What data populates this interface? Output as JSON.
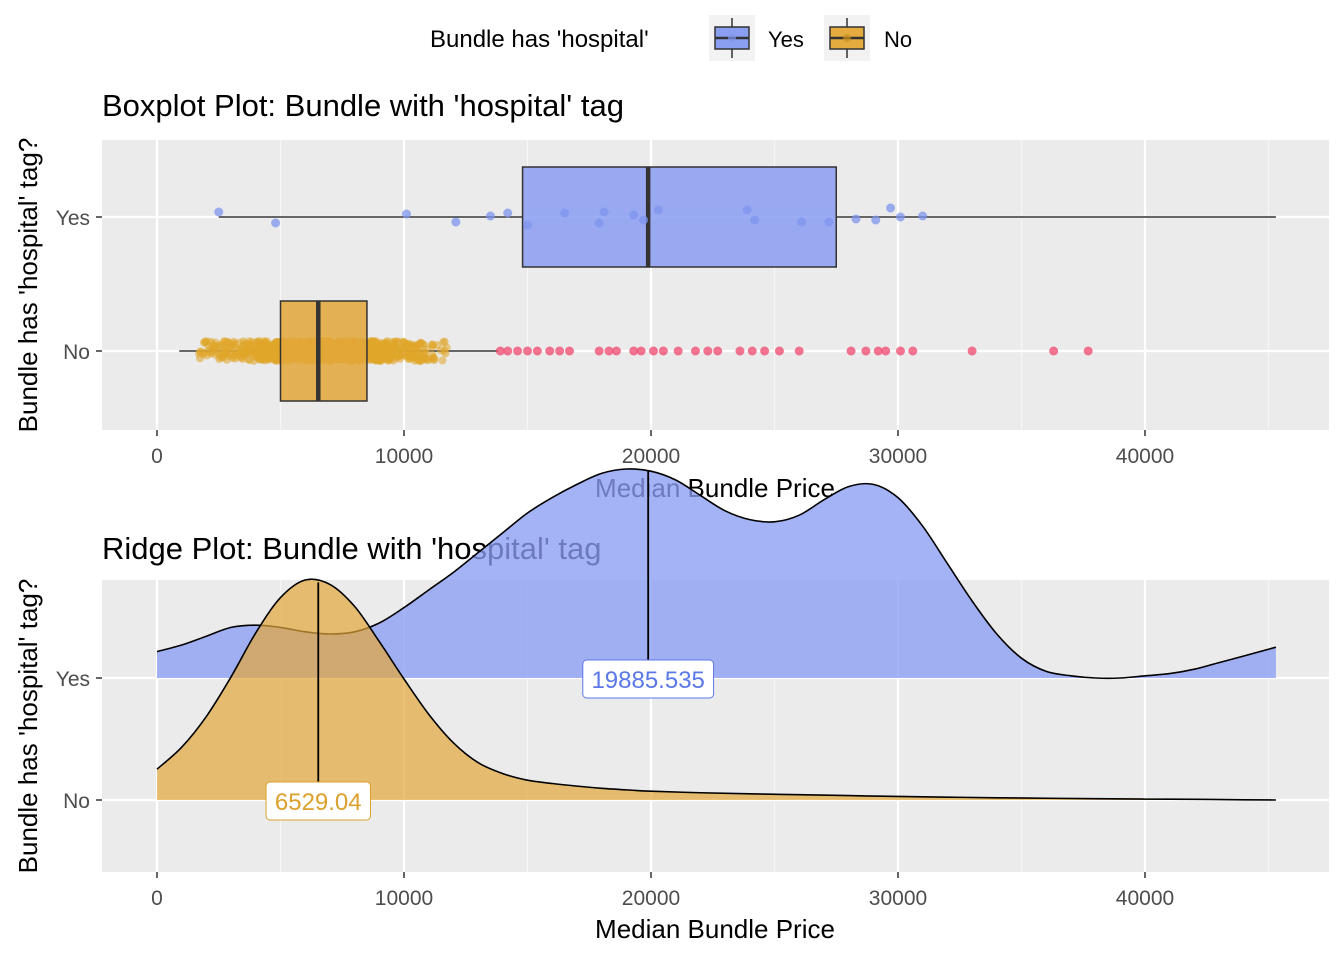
{
  "legend": {
    "title": "Bundle has 'hospital'",
    "items": [
      {
        "label": "Yes",
        "fill": "#8a9ef2"
      },
      {
        "label": "No",
        "fill": "#e4ab3e"
      }
    ]
  },
  "colors": {
    "panel_bg": "#ebebeb",
    "grid": "#ffffff",
    "yes_fill": "#8a9ef2",
    "yes_point": "#7f95ee",
    "no_fill": "#e2a73a",
    "no_point": "#e0a52a",
    "outlier": "#f0476e",
    "line": "#333333",
    "axis_text": "#4d4d4d",
    "label_yes": "#5a78e8",
    "label_no": "#dca12c"
  },
  "chart_data": [
    {
      "type": "boxplot",
      "title": "Boxplot Plot: Bundle with 'hospital' tag",
      "xlabel": "Median Bundle Price",
      "ylabel": "Bundle has 'hospital' tag?",
      "xlim": [
        -2200,
        47600
      ],
      "x_ticks": [
        0,
        10000,
        20000,
        30000,
        40000
      ],
      "x_tick_labels": [
        "0",
        "10000",
        "20000",
        "30000",
        "40000"
      ],
      "categories": [
        "No",
        "Yes"
      ],
      "boxes": [
        {
          "name": "Yes",
          "min": 2500,
          "q1": 14800,
          "median": 19885.535,
          "q3": 27500,
          "max": 45300
        },
        {
          "name": "No",
          "min": 900,
          "q1": 5000,
          "median": 6529.04,
          "q3": 8500,
          "max": 13800
        }
      ],
      "points_yes": [
        {
          "x": 2500,
          "y": 0.05
        },
        {
          "x": 4800,
          "y": -0.06
        },
        {
          "x": 10100,
          "y": 0.03
        },
        {
          "x": 12100,
          "y": -0.05
        },
        {
          "x": 13500,
          "y": 0.01
        },
        {
          "x": 14200,
          "y": 0.04
        },
        {
          "x": 15000,
          "y": -0.08
        },
        {
          "x": 16500,
          "y": 0.04
        },
        {
          "x": 17900,
          "y": -0.06
        },
        {
          "x": 18100,
          "y": 0.05
        },
        {
          "x": 19300,
          "y": 0.02
        },
        {
          "x": 19700,
          "y": -0.03
        },
        {
          "x": 20300,
          "y": 0.07
        },
        {
          "x": 23900,
          "y": 0.07
        },
        {
          "x": 24200,
          "y": -0.03
        },
        {
          "x": 26100,
          "y": -0.05
        },
        {
          "x": 27200,
          "y": -0.05
        },
        {
          "x": 28300,
          "y": -0.02
        },
        {
          "x": 29100,
          "y": -0.03
        },
        {
          "x": 29700,
          "y": 0.09
        },
        {
          "x": 30100,
          "y": 0.0
        },
        {
          "x": 31000,
          "y": 0.01
        }
      ],
      "outliers_no": [
        13900,
        14200,
        14600,
        15000,
        15400,
        15900,
        16300,
        16700,
        17900,
        18300,
        18600,
        19300,
        19600,
        20100,
        20500,
        21100,
        21800,
        22300,
        22700,
        23600,
        24100,
        24600,
        25200,
        26000,
        28100,
        28700,
        29200,
        29500,
        30100,
        30600,
        33000,
        36300,
        37700
      ]
    },
    {
      "type": "ridgeline",
      "title": "Ridge Plot: Bundle with 'hospital' tag",
      "xlabel": "Median Bundle Price",
      "ylabel": "Bundle has 'hospital' tag?",
      "xlim": [
        -2200,
        47600
      ],
      "x_ticks": [
        0,
        10000,
        20000,
        30000,
        40000
      ],
      "x_tick_labels": [
        "0",
        "10000",
        "20000",
        "30000",
        "40000"
      ],
      "categories": [
        "No",
        "Yes"
      ],
      "series": [
        {
          "name": "Yes",
          "median": 19885.535,
          "median_label": "19885.535",
          "x": [
            0,
            1000,
            2000,
            3000,
            4000,
            5000,
            6000,
            7000,
            8000,
            9000,
            10000,
            11000,
            12000,
            13000,
            14000,
            15000,
            16000,
            17000,
            18000,
            19000,
            20000,
            21000,
            22000,
            23000,
            24000,
            25000,
            26000,
            27000,
            28000,
            29000,
            30000,
            31000,
            32000,
            33000,
            34000,
            35000,
            36000,
            37000,
            38000,
            39000,
            40000,
            41000,
            42000,
            43000,
            44000,
            45300
          ],
          "density": [
            0.12,
            0.15,
            0.19,
            0.23,
            0.24,
            0.23,
            0.21,
            0.2,
            0.21,
            0.25,
            0.32,
            0.4,
            0.48,
            0.57,
            0.66,
            0.75,
            0.82,
            0.88,
            0.93,
            0.95,
            0.94,
            0.9,
            0.83,
            0.76,
            0.72,
            0.71,
            0.74,
            0.81,
            0.87,
            0.88,
            0.82,
            0.69,
            0.52,
            0.35,
            0.2,
            0.09,
            0.03,
            0.01,
            0.0,
            0.0,
            0.01,
            0.02,
            0.04,
            0.07,
            0.1,
            0.14
          ]
        },
        {
          "name": "No",
          "median": 6529.04,
          "median_label": "6529.04",
          "x": [
            0,
            1000,
            2000,
            3000,
            4000,
            5000,
            6000,
            7000,
            8000,
            9000,
            10000,
            11000,
            12000,
            13000,
            14000,
            15000,
            16000,
            17000,
            18000,
            19000,
            20000,
            22000,
            24000,
            26000,
            28000,
            30000,
            32000,
            34000,
            36000,
            38000,
            40000,
            42000,
            44000,
            45300
          ],
          "density": [
            0.14,
            0.24,
            0.38,
            0.56,
            0.76,
            0.92,
            1.0,
            0.98,
            0.88,
            0.72,
            0.55,
            0.39,
            0.26,
            0.17,
            0.12,
            0.09,
            0.075,
            0.063,
            0.053,
            0.046,
            0.04,
            0.033,
            0.028,
            0.024,
            0.02,
            0.016,
            0.013,
            0.01,
            0.008,
            0.006,
            0.004,
            0.003,
            0.001,
            0.0
          ]
        }
      ]
    }
  ]
}
